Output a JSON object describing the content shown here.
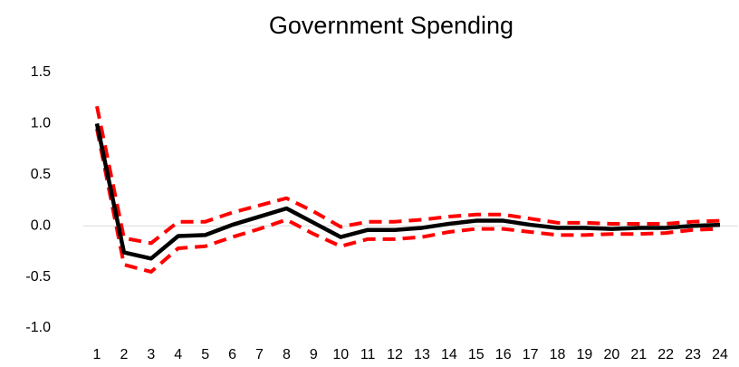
{
  "chart_data": {
    "type": "line",
    "title": "Government Spending",
    "categories": [
      "1",
      "2",
      "3",
      "4",
      "5",
      "6",
      "7",
      "8",
      "9",
      "10",
      "11",
      "12",
      "13",
      "14",
      "15",
      "16",
      "17",
      "18",
      "19",
      "20",
      "21",
      "22",
      "23",
      "24"
    ],
    "series": [
      {
        "color": "#ff0000",
        "dashed": true,
        "values": [
          1.17,
          -0.12,
          -0.17,
          0.04,
          0.04,
          0.13,
          0.2,
          0.27,
          0.14,
          -0.01,
          0.04,
          0.04,
          0.06,
          0.09,
          0.11,
          0.11,
          0.07,
          0.03,
          0.03,
          0.02,
          0.02,
          0.02,
          0.04,
          0.05
        ]
      },
      {
        "color": "#ff0000",
        "dashed": true,
        "values": [
          0.95,
          -0.38,
          -0.45,
          -0.22,
          -0.2,
          -0.11,
          -0.03,
          0.06,
          -0.08,
          -0.2,
          -0.13,
          -0.13,
          -0.11,
          -0.06,
          -0.03,
          -0.03,
          -0.06,
          -0.09,
          -0.09,
          -0.08,
          -0.08,
          -0.07,
          -0.04,
          -0.03
        ]
      },
      {
        "color": "#000000",
        "dashed": false,
        "values": [
          1.0,
          -0.26,
          -0.32,
          -0.1,
          -0.09,
          0.01,
          0.09,
          0.17,
          0.03,
          -0.11,
          -0.04,
          -0.04,
          -0.02,
          0.02,
          0.05,
          0.05,
          0.01,
          -0.02,
          -0.02,
          -0.03,
          -0.02,
          -0.02,
          0.0,
          0.01
        ]
      }
    ],
    "ylim": [
      -1.0,
      1.5
    ],
    "yticks": [
      {
        "value": -1.0,
        "label": "-1.0"
      },
      -0.5,
      {
        "value": 0.0,
        "label": "0.0"
      },
      0.5,
      {
        "value": 1.0,
        "label": "1.0"
      },
      1.5
    ],
    "zero_line": true,
    "grid": false
  }
}
